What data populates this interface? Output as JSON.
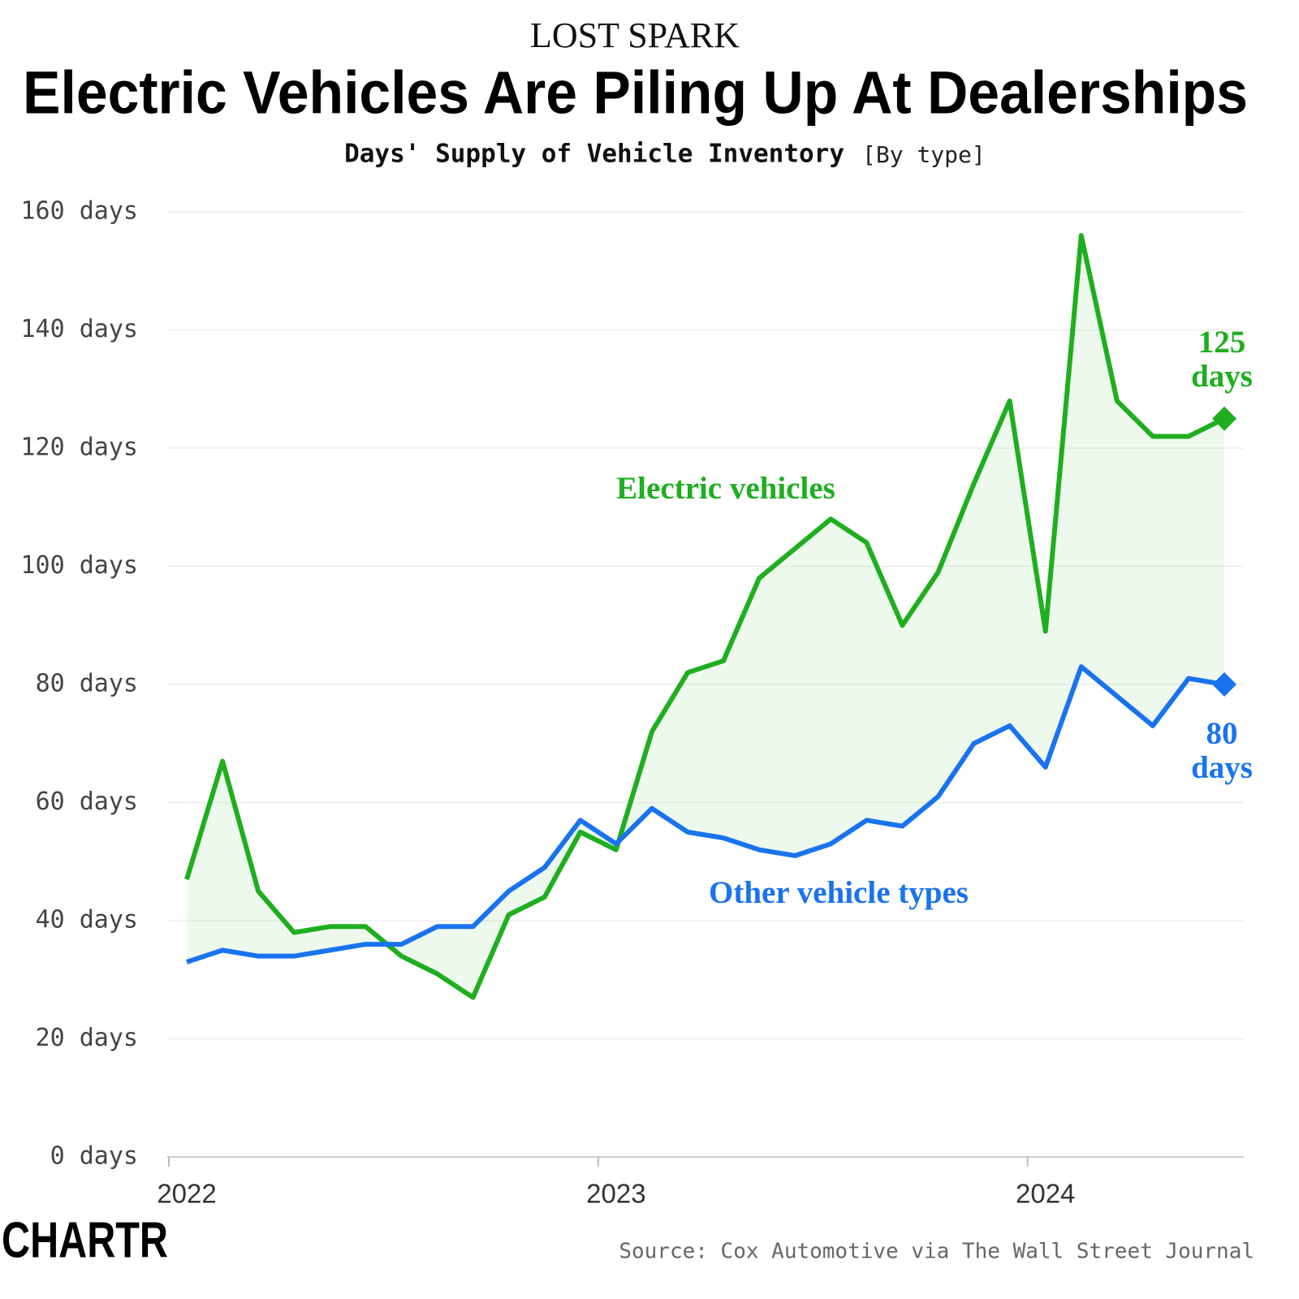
{
  "chart_data": {
    "type": "line",
    "supertitle": "LOST SPARK",
    "title": "Electric Vehicles Are Piling Up At Dealerships",
    "subtitle": "Days' Supply of Vehicle Inventory",
    "subtitle_note": "[By type]",
    "source": "Source: Cox Automotive via The Wall Street Journal",
    "brand": "CHARTR",
    "categories": [
      "2022",
      null,
      null,
      null,
      null,
      null,
      null,
      null,
      null,
      null,
      null,
      null,
      "2023",
      null,
      null,
      null,
      null,
      null,
      null,
      null,
      null,
      null,
      null,
      null,
      "2024",
      null,
      null,
      null,
      null,
      null
    ],
    "series": [
      {
        "name": "Electric vehicles",
        "color": "#1fae1f",
        "values": [
          47,
          67,
          45,
          38,
          39,
          39,
          34,
          31,
          27,
          41,
          44,
          55,
          52,
          72,
          82,
          84,
          98,
          103,
          108,
          104,
          90,
          99,
          114,
          128,
          89,
          156,
          128,
          122,
          122,
          125
        ],
        "value_labels": [
          null,
          null,
          null,
          null,
          null,
          null,
          null,
          null,
          null,
          null,
          null,
          null,
          null,
          null,
          null,
          null,
          null,
          null,
          null,
          null,
          null,
          null,
          null,
          null,
          null,
          null,
          null,
          null,
          null,
          "125 days"
        ]
      },
      {
        "name": "Other vehicle types",
        "color": "#1a73ee",
        "values": [
          33,
          35,
          34,
          34,
          35,
          36,
          36,
          39,
          39,
          45,
          49,
          57,
          53,
          59,
          55,
          54,
          52,
          51,
          53,
          57,
          56,
          61,
          70,
          73,
          66,
          83,
          78,
          73,
          81,
          80
        ],
        "value_labels": [
          null,
          null,
          null,
          null,
          null,
          null,
          null,
          null,
          null,
          null,
          null,
          null,
          null,
          null,
          null,
          null,
          null,
          null,
          null,
          null,
          null,
          null,
          null,
          null,
          null,
          null,
          null,
          null,
          null,
          "80 days"
        ]
      }
    ],
    "ylim": [
      0,
      160
    ],
    "yticks": [
      {
        "value": 0,
        "label": "0 days"
      },
      {
        "value": 20,
        "label": "20 days"
      },
      {
        "value": 40,
        "label": "40 days"
      },
      {
        "value": 60,
        "label": "60 days"
      },
      {
        "value": 80,
        "label": "80 days"
      },
      {
        "value": 100,
        "label": "100 days"
      },
      {
        "value": 120,
        "label": "120 days"
      },
      {
        "value": 140,
        "label": "140 days"
      },
      {
        "value": 160,
        "label": "160 days"
      }
    ],
    "grid": true
  }
}
